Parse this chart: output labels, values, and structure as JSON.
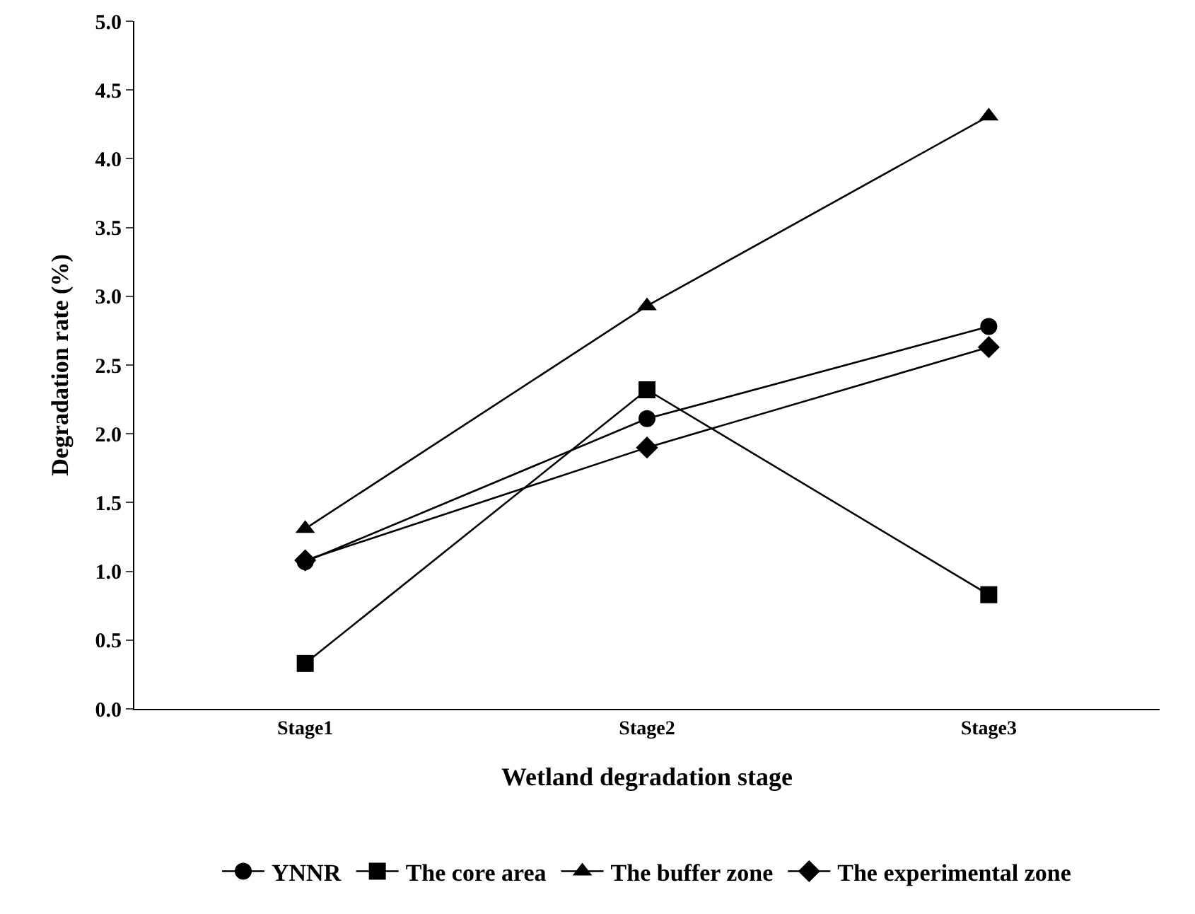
{
  "chart_data": {
    "type": "line",
    "xlabel": "Wetland degradation stage",
    "ylabel": "Degradation rate (%)",
    "categories": [
      "Stage1",
      "Stage2",
      "Stage3"
    ],
    "series": [
      {
        "name": "YNNR",
        "color": "#000000",
        "marker": "circle",
        "values": [
          1.07,
          2.11,
          2.78
        ]
      },
      {
        "name": "The core area",
        "color": "#000000",
        "marker": "square",
        "values": [
          0.33,
          2.32,
          0.83
        ]
      },
      {
        "name": "The buffer zone",
        "color": "#000000",
        "marker": "triangle",
        "values": [
          1.31,
          2.93,
          4.31
        ]
      },
      {
        "name": "The experimental zone",
        "color": "#000000",
        "marker": "diamond",
        "values": [
          1.08,
          1.9,
          2.63
        ]
      }
    ],
    "ylim": [
      0,
      5
    ],
    "yticks": [
      {
        "value": 0,
        "label": "0.0"
      },
      {
        "value": 0.5,
        "label": "0.5"
      },
      {
        "value": 1,
        "label": "1.0"
      },
      {
        "value": 1.5,
        "label": "1.5"
      },
      {
        "value": 2,
        "label": "2.0"
      },
      {
        "value": 2.5,
        "label": "2.5"
      },
      {
        "value": 3,
        "label": "3.0"
      },
      {
        "value": 3.5,
        "label": "3.5"
      },
      {
        "value": 4,
        "label": "4.0"
      },
      {
        "value": 4.5,
        "label": "4.5"
      },
      {
        "value": 5,
        "label": "5.0"
      }
    ],
    "grid": false,
    "legend": "bottom",
    "line_style": "solid"
  }
}
